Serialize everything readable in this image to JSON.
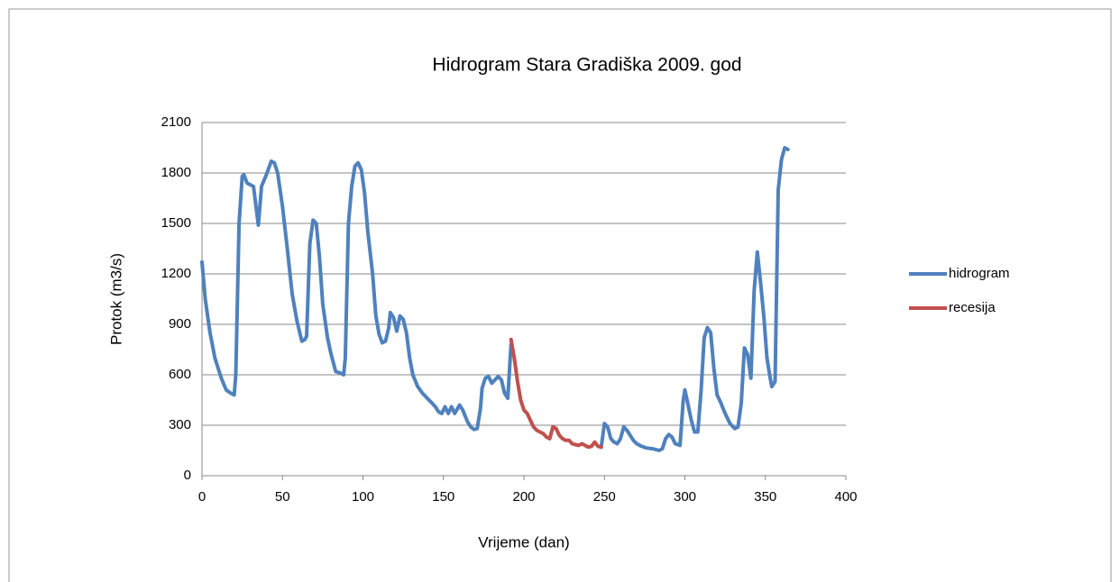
{
  "chart_data": {
    "type": "line",
    "title": "Hidrogram Stara Gradiška 2009. god",
    "xlabel": "Vrijeme (dan)",
    "ylabel": "Protok (m3/s)",
    "xlim": [
      0,
      400
    ],
    "xticks": [
      0,
      50,
      100,
      150,
      200,
      250,
      300,
      350,
      400
    ],
    "ylim": [
      0,
      2100
    ],
    "yticks": [
      0,
      300,
      600,
      900,
      1200,
      1500,
      1800,
      2100
    ],
    "grid": true,
    "legend": "right",
    "series": [
      {
        "name": "hidrogram",
        "color": "#4f81bd",
        "x": [
          0,
          2,
          5,
          8,
          12,
          15,
          18,
          20,
          21,
          23,
          25,
          26,
          28,
          30,
          32,
          35,
          37,
          40,
          43,
          45,
          47,
          50,
          53,
          56,
          59,
          62,
          64,
          65,
          67,
          69,
          71,
          73,
          75,
          78,
          80,
          83,
          86,
          88,
          89,
          91,
          93,
          95,
          97,
          99,
          101,
          103,
          106,
          108,
          110,
          112,
          114,
          116,
          117,
          119,
          121,
          123,
          125,
          127,
          129,
          131,
          134,
          137,
          140,
          143,
          145,
          147,
          149,
          151,
          153,
          155,
          157,
          160,
          162,
          165,
          167,
          169,
          171,
          173,
          174,
          176,
          178,
          180,
          182,
          184,
          186,
          188,
          190,
          192,
          null,
          248,
          250,
          252,
          254,
          256,
          258,
          260,
          262,
          264,
          266,
          268,
          270,
          273,
          276,
          280,
          284,
          286,
          288,
          290,
          292,
          294,
          297,
          299,
          300,
          302,
          304,
          306,
          308,
          310,
          312,
          314,
          316,
          318,
          320,
          322,
          325,
          328,
          331,
          333,
          335,
          337,
          339,
          341,
          343,
          345,
          347,
          349,
          351,
          353,
          354,
          356,
          358,
          360,
          362,
          364
        ],
        "values": [
          1270,
          1050,
          850,
          700,
          580,
          510,
          490,
          480,
          600,
          1500,
          1780,
          1790,
          1740,
          1730,
          1720,
          1490,
          1720,
          1790,
          1870,
          1860,
          1800,
          1600,
          1350,
          1080,
          920,
          800,
          810,
          830,
          1380,
          1520,
          1500,
          1300,
          1020,
          820,
          730,
          620,
          610,
          600,
          700,
          1500,
          1720,
          1840,
          1860,
          1820,
          1680,
          1450,
          1200,
          950,
          840,
          790,
          800,
          880,
          970,
          940,
          860,
          950,
          930,
          850,
          700,
          600,
          530,
          490,
          460,
          430,
          410,
          380,
          370,
          410,
          370,
          410,
          370,
          420,
          390,
          320,
          290,
          275,
          280,
          400,
          520,
          580,
          590,
          550,
          570,
          590,
          570,
          490,
          460,
          780,
          null,
          170,
          310,
          290,
          220,
          200,
          190,
          220,
          290,
          270,
          240,
          210,
          190,
          175,
          165,
          160,
          150,
          160,
          220,
          245,
          230,
          190,
          180,
          450,
          510,
          420,
          330,
          260,
          260,
          500,
          820,
          880,
          850,
          640,
          480,
          440,
          370,
          310,
          280,
          290,
          430,
          760,
          720,
          580,
          1100,
          1330,
          1150,
          950,
          700,
          580,
          530,
          560,
          1700,
          1880,
          1950,
          1940
        ]
      },
      {
        "name": "recesija",
        "color": "#c0504d",
        "x": [
          192,
          194,
          196,
          198,
          200,
          202,
          204,
          206,
          208,
          210,
          212,
          214,
          216,
          218,
          220,
          222,
          224,
          226,
          228,
          230,
          232,
          234,
          236,
          238,
          240,
          242,
          244,
          246,
          248
        ],
        "values": [
          810,
          700,
          560,
          450,
          390,
          370,
          330,
          290,
          270,
          260,
          250,
          230,
          220,
          290,
          280,
          240,
          220,
          210,
          210,
          190,
          185,
          180,
          190,
          180,
          170,
          175,
          200,
          175,
          170
        ]
      }
    ]
  }
}
